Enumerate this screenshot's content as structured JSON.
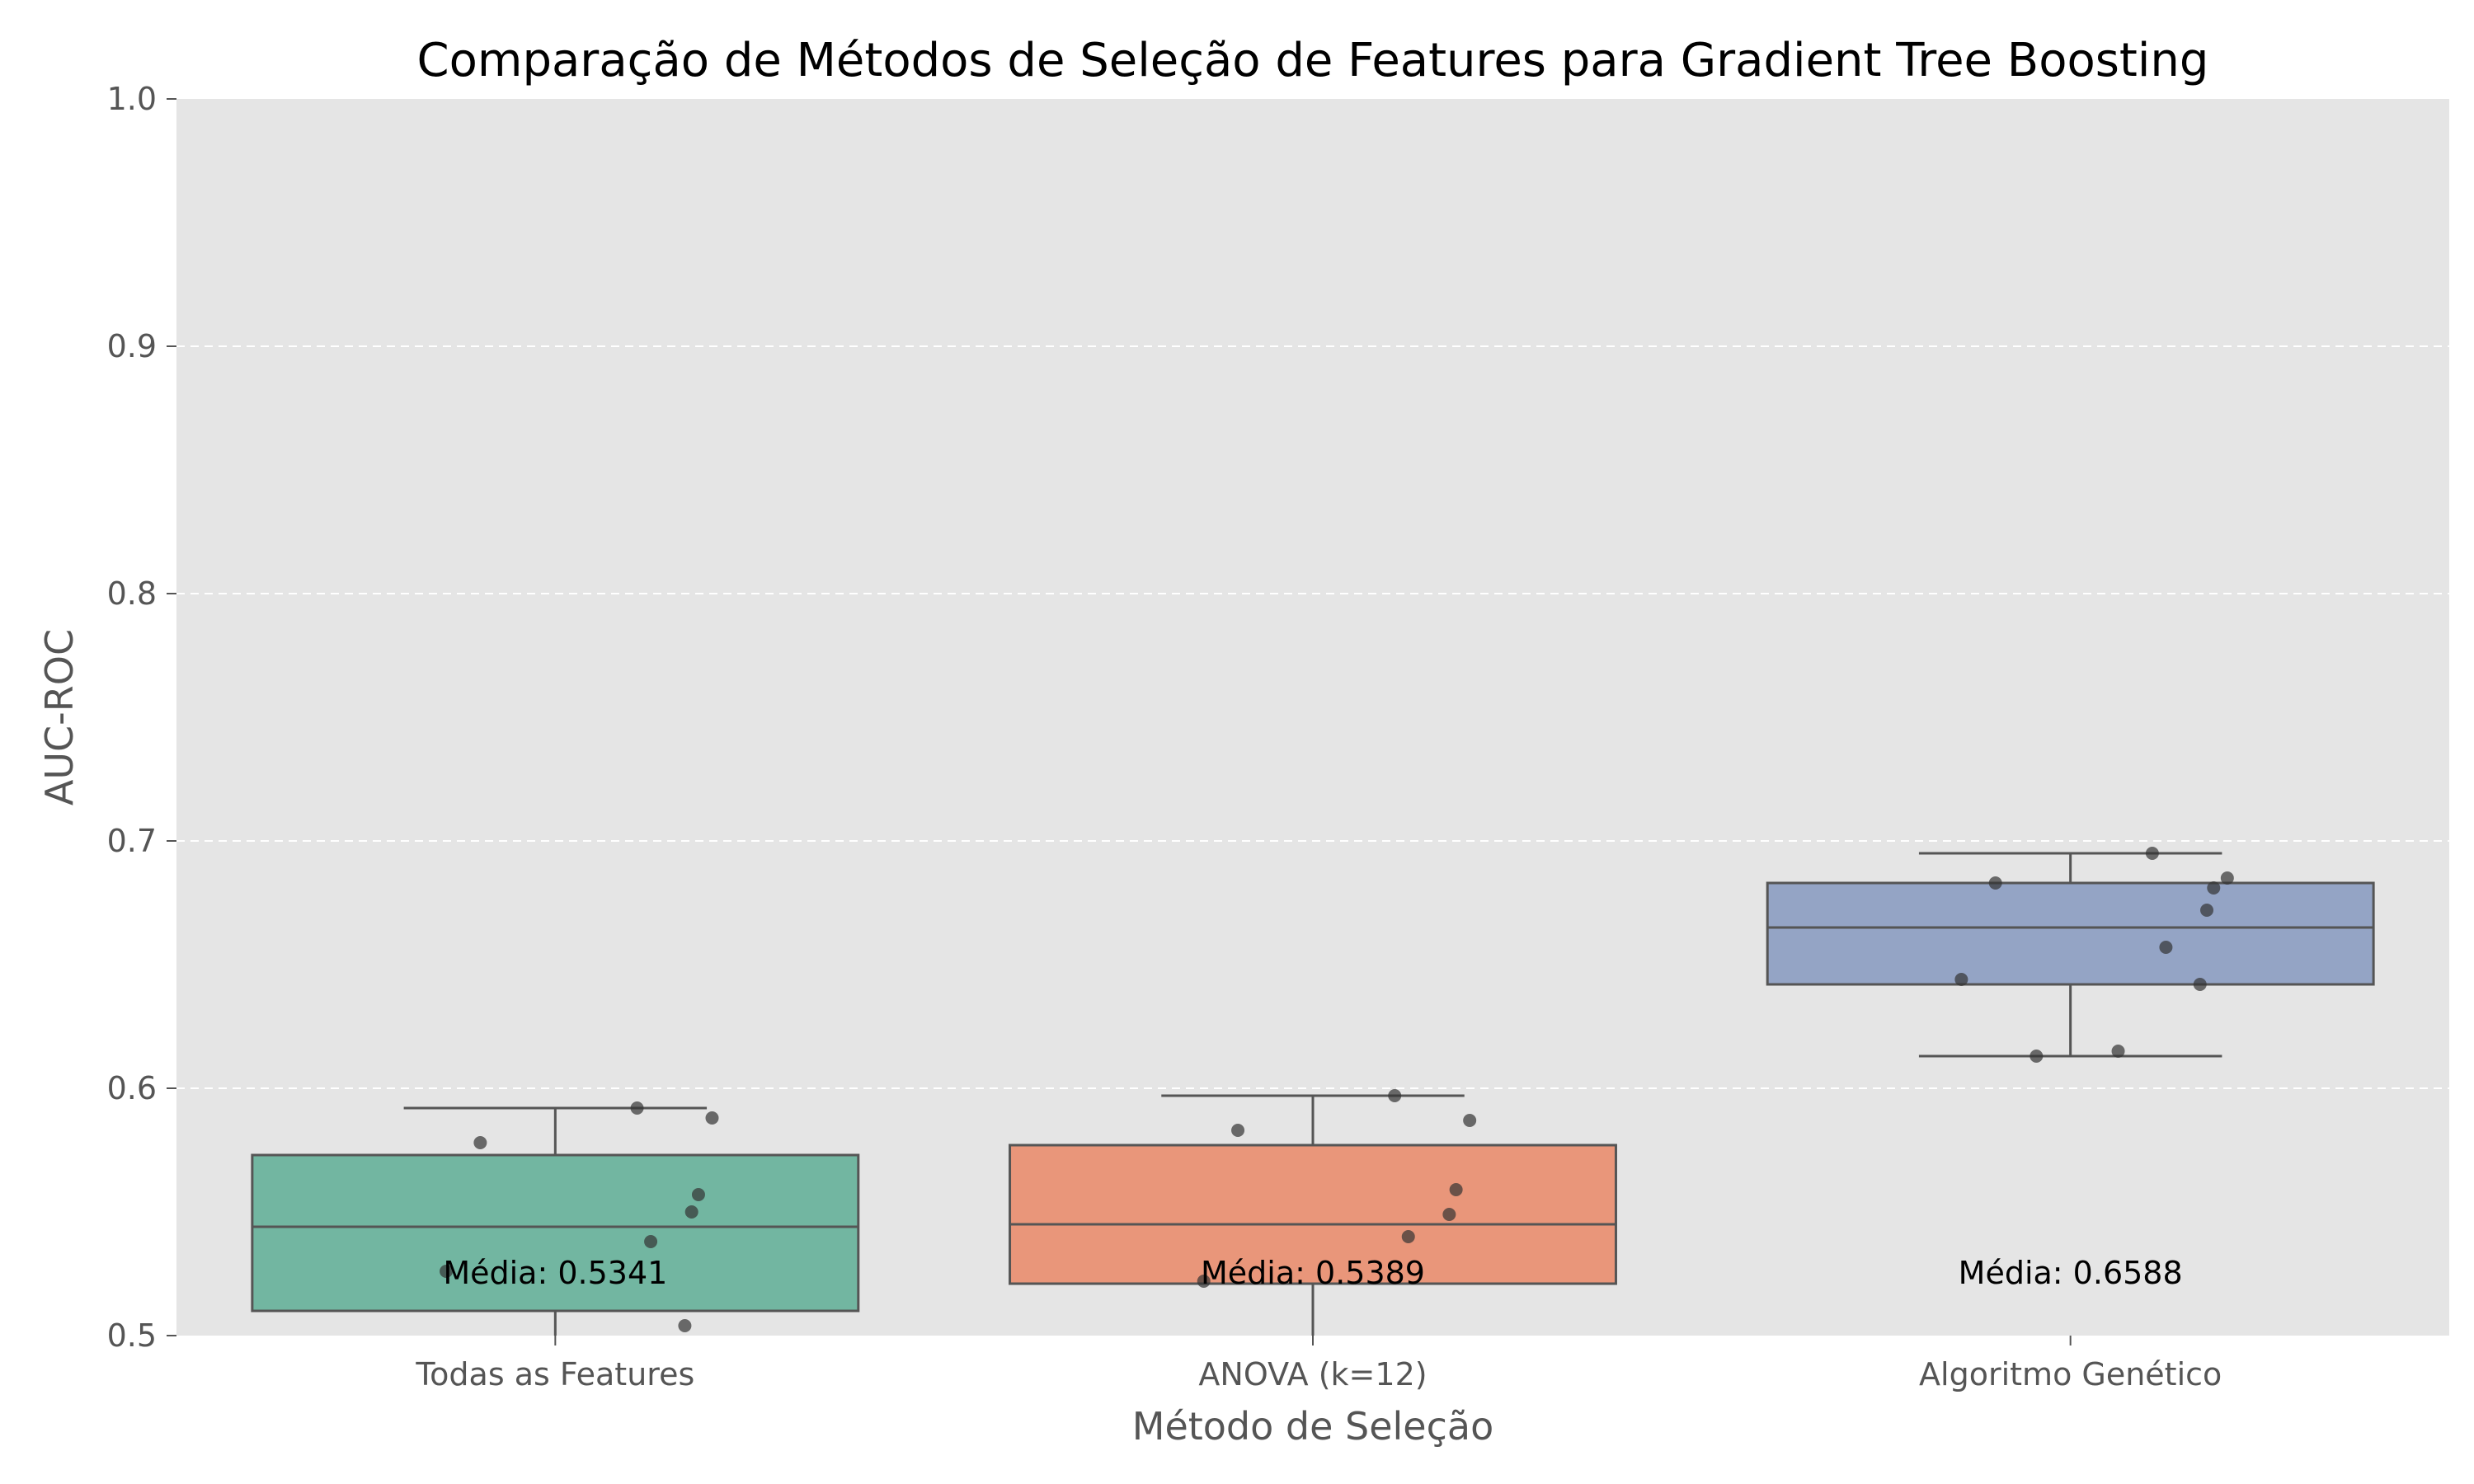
{
  "chart_data": {
    "type": "box",
    "title": "Comparação de Métodos de Seleção de Features para Gradient Tree Boosting",
    "xlabel": "Método de Seleção",
    "ylabel": "AUC-ROC",
    "ylim": [
      0.5,
      1.0
    ],
    "yticks": [
      "0.5",
      "0.6",
      "0.7",
      "0.8",
      "0.9",
      "1.0"
    ],
    "grid": "y-dashed",
    "colors": {
      "background": "#e5e5e5",
      "grid": "#ffffff",
      "box_line": "#555555",
      "points": "#333333"
    },
    "categories": [
      {
        "name": "Todas as Features",
        "color": "#72b6a1",
        "whisker_low": 0.48,
        "q1": 0.51,
        "median": 0.544,
        "q3": 0.573,
        "whisker_high": 0.592,
        "mean_label": "Média: 0.5341",
        "points": [
          0.592,
          0.588,
          0.578,
          0.557,
          0.55,
          0.538,
          0.526,
          0.504
        ]
      },
      {
        "name": "ANOVA (k=12)",
        "color": "#e9967a",
        "whisker_low": 0.48,
        "q1": 0.521,
        "median": 0.545,
        "q3": 0.577,
        "whisker_high": 0.597,
        "mean_label": "Média: 0.5389",
        "points": [
          0.597,
          0.587,
          0.583,
          0.559,
          0.549,
          0.54,
          0.522
        ]
      },
      {
        "name": "Algoritmo Genético",
        "color": "#94a4c5",
        "whisker_low": 0.613,
        "q1": 0.642,
        "median": 0.665,
        "q3": 0.683,
        "whisker_high": 0.695,
        "mean_label": "Média: 0.6588",
        "points": [
          0.695,
          0.685,
          0.683,
          0.681,
          0.672,
          0.657,
          0.644,
          0.642,
          0.615,
          0.613
        ]
      }
    ]
  }
}
